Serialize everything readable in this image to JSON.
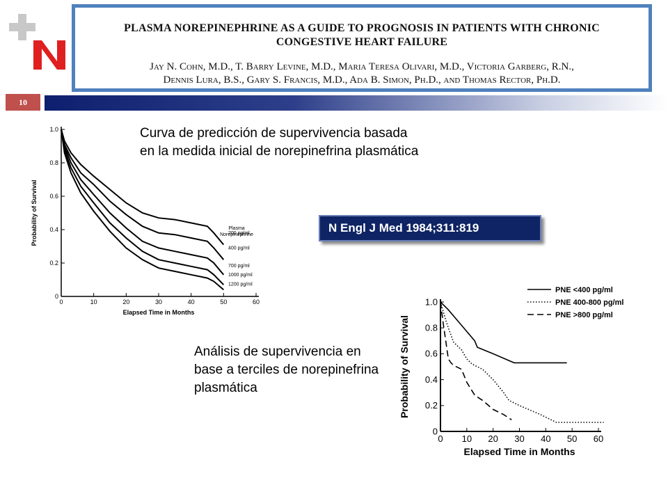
{
  "slide": {
    "number": "10",
    "colors": {
      "accent_red": "#c0504d",
      "header_border": "#4f81bd",
      "bar_dark": "#0d1f6e",
      "ref_box": "#0f2464"
    },
    "logo": {
      "icon": "plus-n-logo"
    }
  },
  "paper": {
    "title_line1": "PLASMA NOREPINEPHRINE AS A GUIDE TO PROGNOSIS IN PATIENTS WITH CHRONIC",
    "title_line2": "CONGESTIVE HEART FAILURE",
    "authors_line1": "Jay N. Cohn, M.D., T. Barry Levine, M.D., Maria Teresa Olivari, M.D., Victoria Garberg, R.N.,",
    "authors_line2": "Dennis Lura, B.S., Gary S. Francis, M.D., Ada B. Simon, Ph.D., and Thomas Rector, Ph.D."
  },
  "captions": {
    "top": "Curva de predicción de supervivencia basada en la medida inicial de norepinefrina plasmática",
    "bottom": "Análisis de supervivencia en base a terciles de norepinefrina plasmática"
  },
  "reference": "N Engl J Med 1984;311:819",
  "chart_data": [
    {
      "type": "line",
      "xlabel": "Elapsed Time in Months",
      "ylabel": "Probability of Survival",
      "xlim": [
        0,
        60
      ],
      "ylim": [
        0,
        1.0
      ],
      "xticks": [
        "0",
        "10",
        "20",
        "30",
        "40",
        "50",
        "60"
      ],
      "yticks": [
        "0",
        "0.2",
        "0.4",
        "0.6",
        "0.8",
        "1.0"
      ],
      "legend_title": [
        "Plasma",
        "Norepinephrine"
      ],
      "series": [
        {
          "name": "200 pg/ml",
          "x": [
            0,
            1,
            3,
            6,
            10,
            15,
            20,
            25,
            30,
            35,
            40,
            45,
            47,
            50
          ],
          "y": [
            1.0,
            0.93,
            0.86,
            0.79,
            0.72,
            0.64,
            0.56,
            0.5,
            0.47,
            0.46,
            0.44,
            0.42,
            0.38,
            0.31
          ]
        },
        {
          "name": "400 pg/ml",
          "x": [
            0,
            1,
            3,
            6,
            10,
            15,
            20,
            25,
            30,
            35,
            40,
            45,
            47,
            50
          ],
          "y": [
            1.0,
            0.91,
            0.83,
            0.74,
            0.67,
            0.57,
            0.49,
            0.42,
            0.38,
            0.37,
            0.35,
            0.33,
            0.29,
            0.22
          ]
        },
        {
          "name": "700 pg/ml",
          "x": [
            0,
            1,
            3,
            6,
            10,
            15,
            20,
            25,
            30,
            35,
            40,
            45,
            47,
            50
          ],
          "y": [
            1.0,
            0.9,
            0.8,
            0.7,
            0.61,
            0.5,
            0.41,
            0.33,
            0.29,
            0.27,
            0.25,
            0.23,
            0.2,
            0.13
          ]
        },
        {
          "name": "1000 pg/ml",
          "x": [
            0,
            1,
            3,
            6,
            10,
            15,
            20,
            25,
            30,
            35,
            40,
            45,
            47,
            50
          ],
          "y": [
            1.0,
            0.88,
            0.77,
            0.66,
            0.56,
            0.44,
            0.35,
            0.27,
            0.22,
            0.2,
            0.18,
            0.16,
            0.13,
            0.07
          ]
        },
        {
          "name": "1200 pg/ml",
          "x": [
            0,
            1,
            3,
            6,
            10,
            15,
            20,
            25,
            30,
            35,
            40,
            45,
            47,
            50
          ],
          "y": [
            1.0,
            0.86,
            0.74,
            0.62,
            0.51,
            0.39,
            0.29,
            0.22,
            0.17,
            0.15,
            0.13,
            0.11,
            0.09,
            0.04
          ]
        }
      ]
    },
    {
      "type": "line",
      "xlabel": "Elapsed Time in Months",
      "ylabel": "Probability of Survival",
      "xlim": [
        0,
        60
      ],
      "ylim": [
        0,
        1.0
      ],
      "xticks": [
        "0",
        "10",
        "20",
        "30",
        "40",
        "50",
        "60"
      ],
      "yticks": [
        "0",
        "0.2",
        "0.4",
        "0.6",
        "0.8",
        "1.0"
      ],
      "legend_placement": "top-right",
      "series": [
        {
          "name": "PNE <400 pg/ml",
          "style": "solid",
          "x": [
            0,
            1,
            3,
            8,
            13,
            14,
            20,
            28,
            48
          ],
          "y": [
            1.0,
            0.98,
            0.94,
            0.82,
            0.7,
            0.65,
            0.6,
            0.53,
            0.53
          ]
        },
        {
          "name": "PNE 400-800 pg/ml",
          "style": "dotted",
          "x": [
            0,
            1,
            2,
            3,
            5,
            8,
            10,
            12,
            13,
            14,
            16,
            18,
            20,
            22,
            24,
            26,
            30,
            38,
            44,
            62
          ],
          "y": [
            1.0,
            0.93,
            0.86,
            0.8,
            0.69,
            0.63,
            0.56,
            0.52,
            0.51,
            0.5,
            0.48,
            0.44,
            0.4,
            0.35,
            0.3,
            0.24,
            0.2,
            0.13,
            0.07,
            0.07
          ]
        },
        {
          "name": "PNE >800 pg/ml",
          "style": "dashed",
          "x": [
            0,
            1,
            2,
            3,
            4,
            5,
            8,
            10,
            13,
            16,
            20,
            24,
            27
          ],
          "y": [
            1.0,
            0.84,
            0.7,
            0.56,
            0.53,
            0.51,
            0.48,
            0.38,
            0.28,
            0.24,
            0.17,
            0.13,
            0.09
          ]
        }
      ]
    }
  ]
}
